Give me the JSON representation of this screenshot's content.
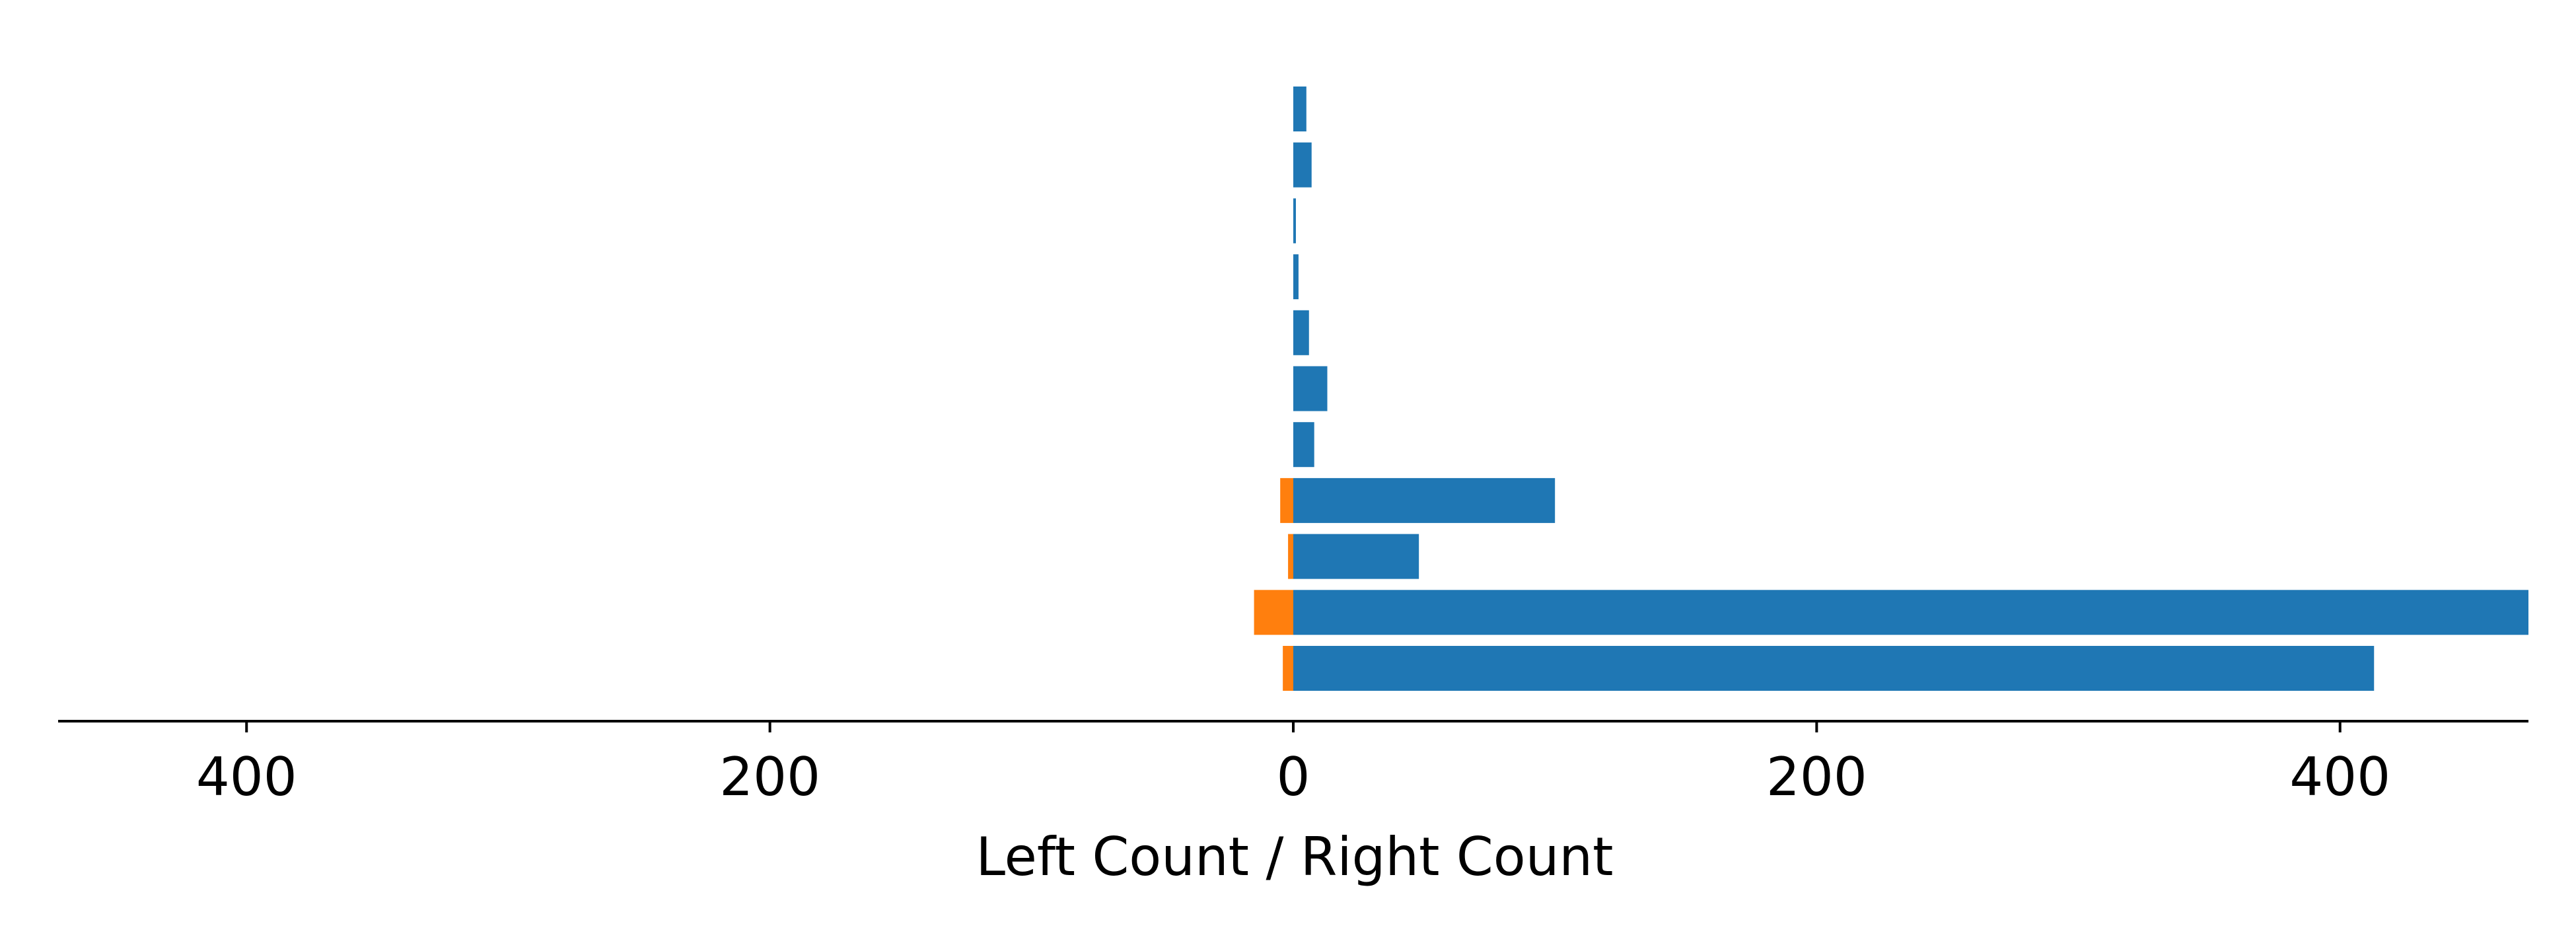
{
  "chart_data": {
    "type": "bar",
    "orientation": "horizontal",
    "layout": "diverging",
    "xlabel": "Left Count / Right Count",
    "ylabel": "",
    "title": "",
    "x_tick_labels": [
      "400",
      "200",
      "0",
      "200",
      "400"
    ],
    "x_tick_values": [
      -400,
      -200,
      0,
      200,
      400
    ],
    "xlim": [
      -472,
      472
    ],
    "grid": false,
    "series": [
      {
        "color": "#1f77b4",
        "side": "right",
        "values": [
          413,
          472,
          48,
          100,
          8,
          13,
          6,
          2,
          1,
          7,
          5
        ]
      },
      {
        "color": "#ff7f0e",
        "side": "left",
        "values": [
          4,
          15,
          2,
          5,
          0,
          0,
          0,
          0,
          0,
          0,
          0
        ]
      }
    ]
  }
}
